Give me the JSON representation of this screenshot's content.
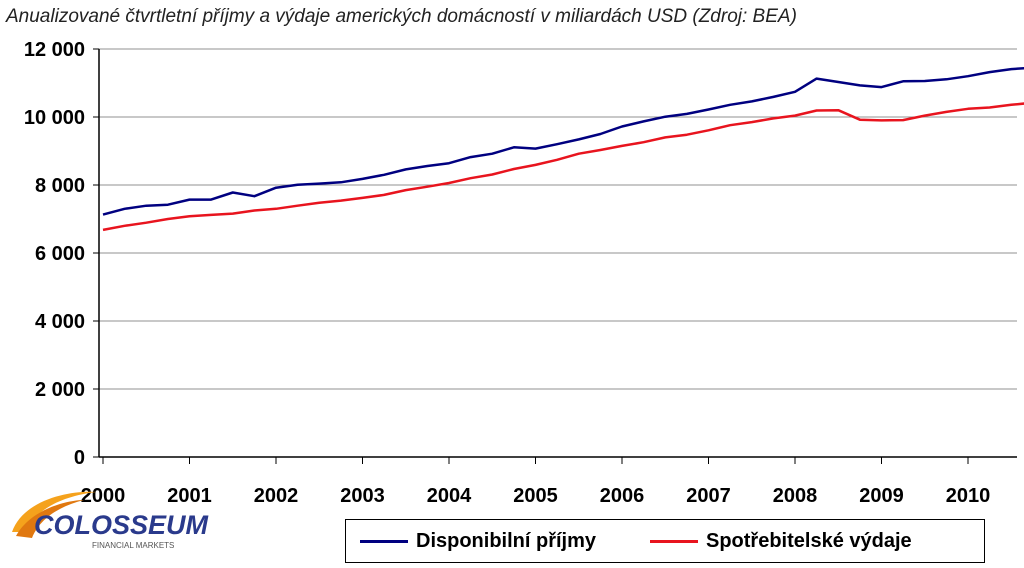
{
  "chart_data": {
    "type": "line",
    "title": "Anualizované čtvrtletní příjmy a výdaje amerických domácností v miliardách USD (Zdroj: BEA)",
    "xlabel": "",
    "ylabel": "",
    "x_tick_labels": [
      "2000",
      "2001",
      "2002",
      "2003",
      "2004",
      "2005",
      "2006",
      "2007",
      "2008",
      "2009",
      "2010"
    ],
    "y_tick_labels": [
      "0",
      "2 000",
      "4 000",
      "6 000",
      "8 000",
      "10 000",
      "12 000"
    ],
    "ylim": [
      0,
      12000
    ],
    "grid": "horizontal",
    "legend_position": "bottom-right",
    "x": [
      "2000 Q1",
      "2000 Q2",
      "2000 Q3",
      "2000 Q4",
      "2001 Q1",
      "2001 Q2",
      "2001 Q3",
      "2001 Q4",
      "2002 Q1",
      "2002 Q2",
      "2002 Q3",
      "2002 Q4",
      "2003 Q1",
      "2003 Q2",
      "2003 Q3",
      "2003 Q4",
      "2004 Q1",
      "2004 Q2",
      "2004 Q3",
      "2004 Q4",
      "2005 Q1",
      "2005 Q2",
      "2005 Q3",
      "2005 Q4",
      "2006 Q1",
      "2006 Q2",
      "2006 Q3",
      "2006 Q4",
      "2007 Q1",
      "2007 Q2",
      "2007 Q3",
      "2007 Q4",
      "2008 Q1",
      "2008 Q2",
      "2008 Q3",
      "2008 Q4",
      "2009 Q1",
      "2009 Q2",
      "2009 Q3",
      "2009 Q4",
      "2010 Q1",
      "2010 Q2",
      "2010 Q3",
      "2010 Q4"
    ],
    "series": [
      {
        "name": "Disponibilní příjmy",
        "color": "#000080",
        "values": [
          7130,
          7300,
          7390,
          7420,
          7570,
          7570,
          7780,
          7670,
          7920,
          8010,
          8040,
          8080,
          8180,
          8300,
          8460,
          8560,
          8640,
          8820,
          8920,
          9110,
          9070,
          9200,
          9340,
          9500,
          9720,
          9870,
          10010,
          10090,
          10220,
          10360,
          10460,
          10590,
          10740,
          11130,
          11030,
          10930,
          10880,
          11050,
          11060,
          11110,
          11200,
          11320,
          11410,
          11450
        ]
      },
      {
        "name": "Spotřebitelské výdaje",
        "color": "#e8141e",
        "values": [
          6680,
          6800,
          6890,
          7000,
          7080,
          7120,
          7160,
          7250,
          7300,
          7390,
          7480,
          7540,
          7620,
          7710,
          7850,
          7950,
          8060,
          8200,
          8310,
          8470,
          8590,
          8740,
          8920,
          9030,
          9150,
          9260,
          9400,
          9480,
          9610,
          9760,
          9850,
          9960,
          10040,
          10190,
          10200,
          9920,
          9900,
          9910,
          10040,
          10150,
          10240,
          10280,
          10360,
          10420
        ]
      }
    ]
  },
  "logo": {
    "text": "COLOSSEUM",
    "subtext": "FINANCIAL MARKETS"
  }
}
